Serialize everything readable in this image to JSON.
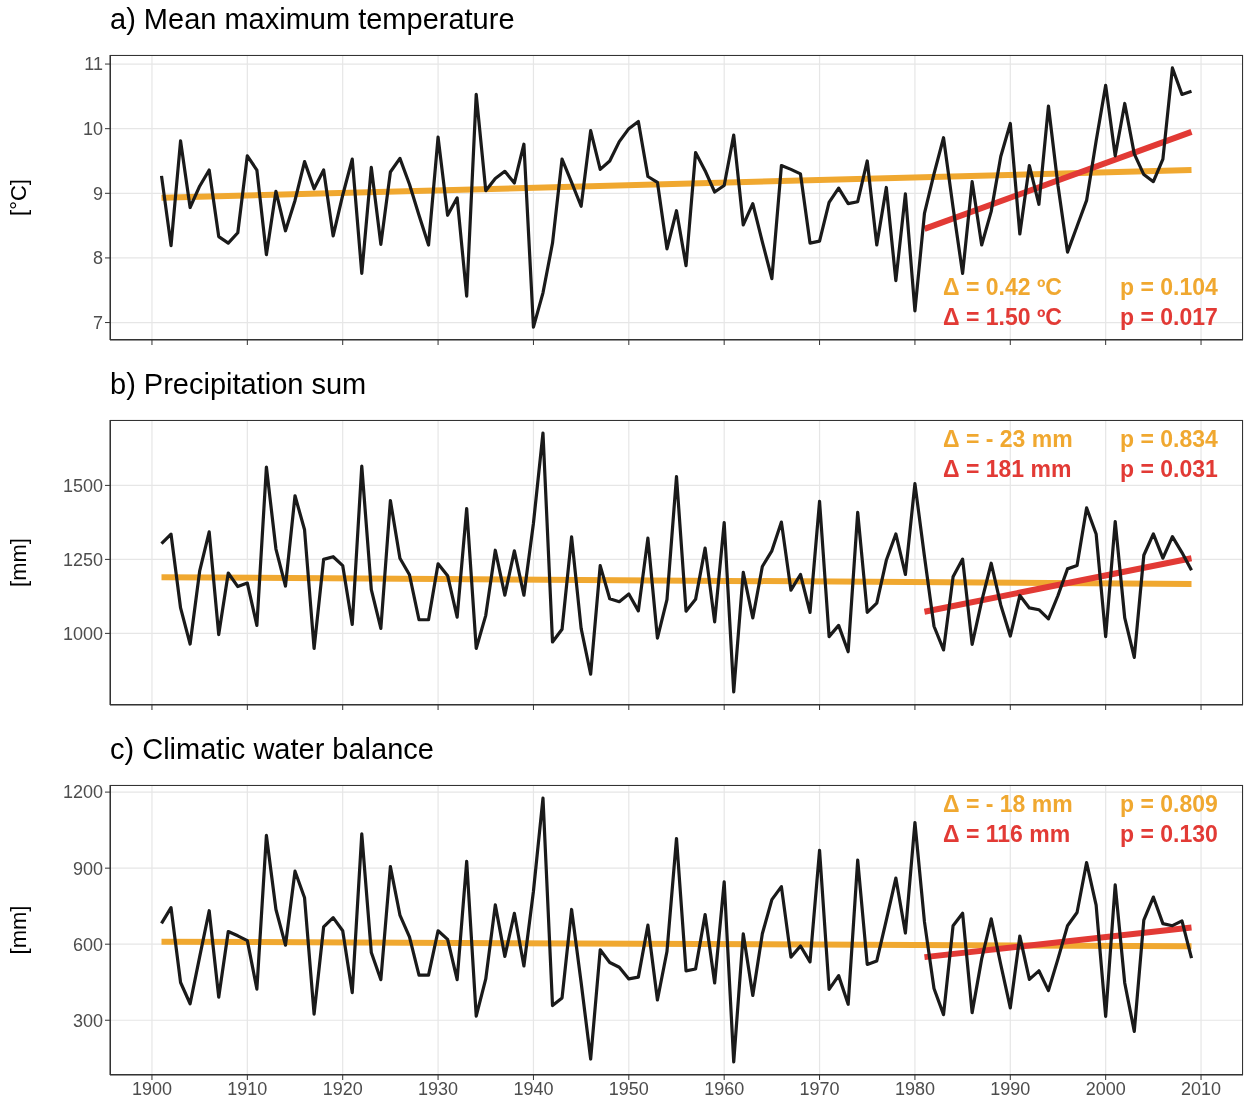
{
  "chart_data": [
    {
      "type": "line",
      "title": "a) Mean maximum temperature",
      "ylabel": "[°C]",
      "xlim": [
        1895.6,
        2014.4
      ],
      "xticks": [
        1900,
        1910,
        1920,
        1930,
        1940,
        1950,
        1960,
        1970,
        1980,
        1990,
        2000,
        2010
      ],
      "ylim": [
        6.73,
        11.14
      ],
      "yticks": [
        7,
        8,
        9,
        10,
        11
      ],
      "grid": true,
      "marker": "none",
      "tick_labels": "y",
      "x": [
        1901,
        1902,
        1903,
        1904,
        1905,
        1906,
        1907,
        1908,
        1909,
        1910,
        1911,
        1912,
        1913,
        1914,
        1915,
        1916,
        1917,
        1918,
        1919,
        1920,
        1921,
        1922,
        1923,
        1924,
        1925,
        1926,
        1927,
        1928,
        1929,
        1930,
        1931,
        1932,
        1933,
        1934,
        1935,
        1936,
        1937,
        1938,
        1939,
        1940,
        1941,
        1942,
        1943,
        1944,
        1945,
        1946,
        1947,
        1948,
        1949,
        1950,
        1951,
        1952,
        1953,
        1954,
        1955,
        1956,
        1957,
        1958,
        1959,
        1960,
        1961,
        1962,
        1963,
        1964,
        1965,
        1966,
        1967,
        1968,
        1969,
        1970,
        1971,
        1972,
        1973,
        1974,
        1975,
        1976,
        1977,
        1978,
        1979,
        1980,
        1981,
        1982,
        1983,
        1984,
        1985,
        1986,
        1987,
        1988,
        1989,
        1990,
        1991,
        1992,
        1993,
        1994,
        1995,
        1996,
        1997,
        1998,
        1999,
        2000,
        2001,
        2002,
        2003,
        2004,
        2005,
        2006,
        2007,
        2008,
        2009
      ],
      "series": [
        {
          "color": "#1a1a1a",
          "values": [
            9.27,
            8.19,
            9.81,
            8.78,
            9.11,
            9.36,
            8.33,
            8.23,
            8.39,
            9.58,
            9.36,
            8.05,
            9.03,
            8.42,
            8.89,
            9.49,
            9.07,
            9.36,
            8.34,
            8.97,
            9.53,
            7.76,
            9.4,
            8.21,
            9.33,
            9.54,
            9.14,
            8.66,
            8.2,
            9.87,
            8.66,
            8.93,
            7.41,
            10.53,
            9.04,
            9.23,
            9.34,
            9.16,
            9.76,
            6.93,
            7.46,
            8.23,
            9.53,
            9.17,
            8.8,
            9.97,
            9.37,
            9.5,
            9.8,
            10.0,
            10.11,
            9.26,
            9.17,
            8.14,
            8.73,
            7.88,
            9.63,
            9.35,
            9.02,
            9.12,
            9.9,
            8.51,
            8.84,
            8.25,
            7.68,
            9.43,
            9.37,
            9.3,
            8.23,
            8.26,
            8.86,
            9.08,
            8.84,
            8.87,
            9.5,
            8.2,
            9.09,
            7.65,
            8.99,
            7.18,
            8.69,
            9.3,
            9.86,
            8.78,
            7.76,
            9.18,
            8.2,
            8.72,
            9.57,
            10.08,
            8.37,
            9.43,
            8.83,
            10.35,
            9.12,
            8.09,
            8.49,
            8.89,
            9.81,
            10.67,
            9.58,
            10.39,
            9.61,
            9.29,
            9.18,
            9.53,
            10.94,
            10.53,
            10.58
          ]
        },
        {
          "color": "#f0a830",
          "x": [
            1901,
            2009
          ],
          "values": [
            8.93,
            9.36
          ]
        },
        {
          "color": "#e23a35",
          "x": [
            1981,
            2009
          ],
          "values": [
            8.45,
            9.95
          ]
        }
      ],
      "annotations": [
        "Δ = 0.42 ºC",
        "p = 0.104",
        "Δ = 1.50 ºC",
        "p = 0.017"
      ]
    },
    {
      "type": "line",
      "title": "b) Precipitation sum",
      "ylabel": "[mm]",
      "xlim": [
        1895.6,
        2014.4
      ],
      "xticks": [
        1900,
        1910,
        1920,
        1930,
        1940,
        1950,
        1960,
        1970,
        1980,
        1990,
        2000,
        2010
      ],
      "ylim": [
        758,
        1721
      ],
      "yticks": [
        1000,
        1250,
        1500
      ],
      "grid": true,
      "marker": "none",
      "tick_labels": "y",
      "x": [
        1901,
        1902,
        1903,
        1904,
        1905,
        1906,
        1907,
        1908,
        1909,
        1910,
        1911,
        1912,
        1913,
        1914,
        1915,
        1916,
        1917,
        1918,
        1919,
        1920,
        1921,
        1922,
        1923,
        1924,
        1925,
        1926,
        1927,
        1928,
        1929,
        1930,
        1931,
        1932,
        1933,
        1934,
        1935,
        1936,
        1937,
        1938,
        1939,
        1940,
        1941,
        1942,
        1943,
        1944,
        1945,
        1946,
        1947,
        1948,
        1949,
        1950,
        1951,
        1952,
        1953,
        1954,
        1955,
        1956,
        1957,
        1958,
        1959,
        1960,
        1961,
        1962,
        1963,
        1964,
        1965,
        1966,
        1967,
        1968,
        1969,
        1970,
        1971,
        1972,
        1973,
        1974,
        1975,
        1976,
        1977,
        1978,
        1979,
        1980,
        1981,
        1982,
        1983,
        1984,
        1985,
        1986,
        1987,
        1988,
        1989,
        1990,
        1991,
        1992,
        1993,
        1994,
        1995,
        1996,
        1997,
        1998,
        1999,
        2000,
        2001,
        2002,
        2003,
        2004,
        2005,
        2006,
        2007,
        2008,
        2009
      ],
      "series": [
        {
          "color": "#1a1a1a",
          "values": [
            1303,
            1335,
            1086,
            964,
            1210,
            1343,
            996,
            1204,
            1158,
            1170,
            1027,
            1562,
            1285,
            1160,
            1465,
            1350,
            949,
            1250,
            1259,
            1229,
            1030,
            1565,
            1148,
            1017,
            1449,
            1254,
            1198,
            1046,
            1046,
            1235,
            1195,
            1055,
            1422,
            949,
            1061,
            1281,
            1129,
            1279,
            1129,
            1372,
            1677,
            971,
            1014,
            1326,
            1017,
            862,
            1229,
            1117,
            1107,
            1133,
            1076,
            1322,
            984,
            1114,
            1530,
            1075,
            1115,
            1288,
            1039,
            1374,
            802,
            1206,
            1052,
            1226,
            1279,
            1376,
            1146,
            1199,
            1071,
            1446,
            989,
            1027,
            938,
            1409,
            1071,
            1102,
            1247,
            1336,
            1199,
            1506,
            1260,
            1024,
            944,
            1191,
            1251,
            963,
            1109,
            1237,
            1096,
            991,
            1128,
            1086,
            1080,
            1049,
            1128,
            1218,
            1229,
            1424,
            1336,
            989,
            1378,
            1052,
            919,
            1264,
            1336,
            1254,
            1327,
            1273,
            1213
          ]
        },
        {
          "color": "#f0a830",
          "x": [
            1901,
            2009
          ],
          "values": [
            1190,
            1167
          ]
        },
        {
          "color": "#e23a35",
          "x": [
            1981,
            2009
          ],
          "values": [
            1073,
            1254
          ]
        }
      ],
      "annotations": [
        "Δ = - 23 mm",
        "p = 0.834",
        "Δ = 181 mm",
        "p = 0.031"
      ]
    },
    {
      "type": "line",
      "title": "c) Climatic water balance",
      "ylabel": "[mm]",
      "xlim": [
        1895.6,
        2014.4
      ],
      "xticks": [
        1900,
        1910,
        1920,
        1930,
        1940,
        1950,
        1960,
        1970,
        1980,
        1990,
        2000,
        2010
      ],
      "ylim": [
        84,
        1228
      ],
      "yticks": [
        300,
        600,
        900,
        1200
      ],
      "grid": true,
      "marker": "none",
      "x": [
        1901,
        1902,
        1903,
        1904,
        1905,
        1906,
        1907,
        1908,
        1909,
        1910,
        1911,
        1912,
        1913,
        1914,
        1915,
        1916,
        1917,
        1918,
        1919,
        1920,
        1921,
        1922,
        1923,
        1924,
        1925,
        1926,
        1927,
        1928,
        1929,
        1930,
        1931,
        1932,
        1933,
        1934,
        1935,
        1936,
        1937,
        1938,
        1939,
        1940,
        1941,
        1942,
        1943,
        1944,
        1945,
        1946,
        1947,
        1948,
        1949,
        1950,
        1951,
        1952,
        1953,
        1954,
        1955,
        1956,
        1957,
        1958,
        1959,
        1960,
        1961,
        1962,
        1963,
        1964,
        1965,
        1966,
        1967,
        1968,
        1969,
        1970,
        1971,
        1972,
        1973,
        1974,
        1975,
        1976,
        1977,
        1978,
        1979,
        1980,
        1981,
        1982,
        1983,
        1984,
        1985,
        1986,
        1987,
        1988,
        1989,
        1990,
        1991,
        1992,
        1993,
        1994,
        1995,
        1996,
        1997,
        1998,
        1999,
        2000,
        2001,
        2002,
        2003,
        2004,
        2005,
        2006,
        2007,
        2008,
        2009
      ],
      "series": [
        {
          "color": "#1a1a1a",
          "values": [
            682,
            744,
            449,
            365,
            550,
            732,
            391,
            650,
            633,
            614,
            423,
            1029,
            737,
            596,
            888,
            783,
            324,
            668,
            705,
            653,
            409,
            1035,
            567,
            460,
            906,
            715,
            629,
            478,
            478,
            653,
            619,
            460,
            927,
            316,
            463,
            755,
            552,
            722,
            514,
            809,
            1176,
            358,
            388,
            737,
            449,
            147,
            578,
            528,
            509,
            463,
            470,
            675,
            380,
            571,
            1017,
            495,
            502,
            717,
            447,
            846,
            136,
            641,
            398,
            641,
            776,
            827,
            549,
            593,
            530,
            970,
            422,
            476,
            363,
            932,
            520,
            534,
            695,
            861,
            644,
            1080,
            688,
            425,
            322,
            673,
            722,
            330,
            542,
            700,
            520,
            349,
            632,
            461,
            495,
            417,
            542,
            673,
            725,
            922,
            754,
            315,
            834,
            447,
            256,
            695,
            786,
            681,
            673,
            692,
            545
          ]
        },
        {
          "color": "#f0a830",
          "x": [
            1901,
            2009
          ],
          "values": [
            610,
            592
          ]
        },
        {
          "color": "#e23a35",
          "x": [
            1981,
            2009
          ],
          "values": [
            549,
            666
          ]
        }
      ],
      "annotations": [
        "Δ = - 18 mm",
        "p = 0.809",
        "Δ = 116 mm",
        "p = 0.130"
      ]
    }
  ]
}
